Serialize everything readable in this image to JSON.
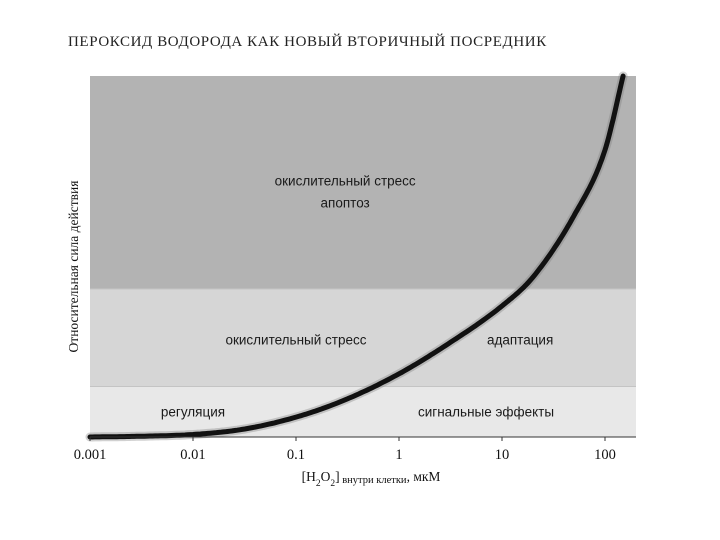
{
  "title": "ПЕРОКСИД ВОДОРОДА КАК НОВЫЙ ВТОРИЧНЫЙ ПОСРЕДНИК",
  "chart_data": {
    "type": "line",
    "xscale": "log",
    "xlim": [
      0.001,
      200
    ],
    "ylim": [
      0,
      100
    ],
    "xticks": [
      0.001,
      0.01,
      0.1,
      1,
      10,
      100
    ],
    "xtick_labels": [
      "0.001",
      "0.01",
      "0.1",
      "1",
      "10",
      "100"
    ],
    "xlabel_parts": [
      "[H",
      "2",
      "O",
      "2",
      "]",
      " внутри клетки",
      ", мкМ"
    ],
    "ylabel": "Относительная сила действия",
    "grid": false,
    "legend": "none",
    "zones": [
      {
        "from": 0,
        "to": 14,
        "color": "#e8e8e8",
        "labels": [
          {
            "text": "регуляция",
            "x": 0.01,
            "y": 7
          },
          {
            "text": "сигнальные эффекты",
            "x": 7,
            "y": 7
          }
        ]
      },
      {
        "from": 14,
        "to": 41,
        "color": "#d6d6d6",
        "labels": [
          {
            "text": "окислительный стресс",
            "x": 0.1,
            "y": 27
          },
          {
            "text": "адаптация",
            "x": 15,
            "y": 27
          }
        ]
      },
      {
        "from": 41,
        "to": 100,
        "color": "#b3b3b3",
        "labels": [
          {
            "text": "окислительный стресс",
            "x": 0.3,
            "y": 71
          },
          {
            "text": "апоптоз",
            "x": 0.3,
            "y": 65
          }
        ]
      }
    ],
    "series": [
      {
        "name": "",
        "color": "#111111",
        "x": [
          0.001,
          0.003,
          0.01,
          0.03,
          0.1,
          0.3,
          1,
          3,
          10,
          20,
          50,
          100,
          150
        ],
        "y": [
          0,
          0.2,
          0.7,
          2.1,
          5.5,
          10.3,
          17.5,
          25.8,
          36.3,
          44.3,
          61.3,
          79.5,
          100
        ]
      }
    ],
    "colors": {
      "curve": "#111111",
      "axis": "#333333"
    }
  }
}
